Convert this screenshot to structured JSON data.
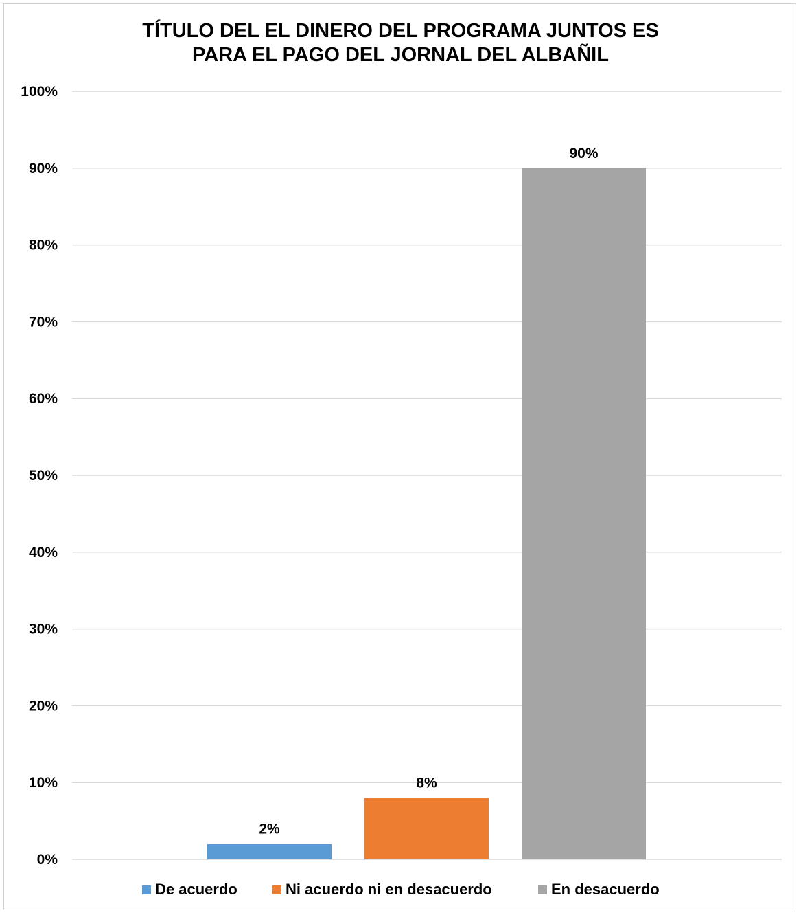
{
  "chart_data": {
    "type": "bar",
    "title_lines": [
      "TÍTULO DEL EL DINERO DEL PROGRAMA JUNTOS ES",
      "PARA EL PAGO DEL JORNAL DEL ALBAÑIL"
    ],
    "xlabel": "",
    "ylabel": "",
    "ylim": [
      0,
      100
    ],
    "y_ticks": [
      0,
      10,
      20,
      30,
      40,
      50,
      60,
      70,
      80,
      90,
      100
    ],
    "y_tick_labels": [
      "0%",
      "10%",
      "20%",
      "30%",
      "40%",
      "50%",
      "60%",
      "70%",
      "80%",
      "90%",
      "100%"
    ],
    "grid": true,
    "legend_position": "bottom",
    "series": [
      {
        "name": "De acuerdo",
        "values": [
          2
        ],
        "labels": [
          "2%"
        ],
        "color": "#5B9BD5"
      },
      {
        "name": "Ni acuerdo ni en desacuerdo",
        "values": [
          8
        ],
        "labels": [
          "8%"
        ],
        "color": "#ED7D31"
      },
      {
        "name": "En desacuerdo",
        "values": [
          90
        ],
        "labels": [
          "90%"
        ],
        "color": "#A5A5A5"
      }
    ]
  }
}
